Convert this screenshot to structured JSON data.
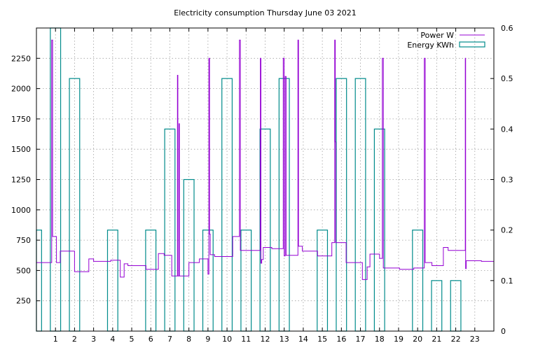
{
  "chart_data": {
    "type": "line",
    "title": "Electricity consumption Thursday June 03 2021",
    "xlabel": "",
    "ylabel": "",
    "xlim": [
      0,
      24
    ],
    "ylim": [
      0,
      2500
    ],
    "y2lim": [
      0,
      0.6
    ],
    "grid": true,
    "legend_position": "top-right",
    "x_ticks": [
      1,
      2,
      3,
      4,
      5,
      6,
      7,
      8,
      9,
      10,
      11,
      12,
      13,
      14,
      15,
      16,
      17,
      18,
      19,
      20,
      21,
      22,
      23
    ],
    "y_ticks": [
      250,
      500,
      750,
      1000,
      1250,
      1500,
      1750,
      2000,
      2250
    ],
    "y2_ticks": [
      0,
      0.1,
      0.2,
      0.3,
      0.4,
      0.5,
      0.6
    ],
    "series": [
      {
        "name": "Power W",
        "color": "#9400d3",
        "style": "steps",
        "axis": "y1",
        "points": [
          [
            0,
            565
          ],
          [
            0.75,
            565
          ],
          [
            0.8,
            2400
          ],
          [
            0.85,
            780
          ],
          [
            1.0,
            780
          ],
          [
            1.05,
            565
          ],
          [
            1.2,
            565
          ],
          [
            1.25,
            660
          ],
          [
            1.95,
            660
          ],
          [
            2.0,
            490
          ],
          [
            2.7,
            490
          ],
          [
            2.75,
            595
          ],
          [
            2.95,
            595
          ],
          [
            3.0,
            575
          ],
          [
            3.85,
            575
          ],
          [
            3.9,
            585
          ],
          [
            4.35,
            585
          ],
          [
            4.4,
            445
          ],
          [
            4.55,
            445
          ],
          [
            4.6,
            555
          ],
          [
            4.75,
            555
          ],
          [
            4.8,
            540
          ],
          [
            5.7,
            540
          ],
          [
            5.75,
            510
          ],
          [
            6.35,
            510
          ],
          [
            6.4,
            640
          ],
          [
            6.65,
            640
          ],
          [
            6.7,
            625
          ],
          [
            7.05,
            625
          ],
          [
            7.1,
            455
          ],
          [
            7.38,
            455
          ],
          [
            7.4,
            2110
          ],
          [
            7.42,
            455
          ],
          [
            7.45,
            455
          ],
          [
            7.48,
            1710
          ],
          [
            7.5,
            455
          ],
          [
            7.95,
            455
          ],
          [
            8.0,
            565
          ],
          [
            8.5,
            565
          ],
          [
            8.55,
            595
          ],
          [
            8.95,
            595
          ],
          [
            9.0,
            470
          ],
          [
            9.05,
            2250
          ],
          [
            9.08,
            800
          ],
          [
            9.12,
            630
          ],
          [
            9.3,
            630
          ],
          [
            9.35,
            615
          ],
          [
            10.25,
            615
          ],
          [
            10.3,
            780
          ],
          [
            10.6,
            780
          ],
          [
            10.65,
            2400
          ],
          [
            10.7,
            665
          ],
          [
            11.7,
            665
          ],
          [
            11.75,
            2250
          ],
          [
            11.78,
            560
          ],
          [
            11.82,
            590
          ],
          [
            11.9,
            690
          ],
          [
            12.3,
            690
          ],
          [
            12.35,
            680
          ],
          [
            12.9,
            680
          ],
          [
            12.95,
            2250
          ],
          [
            13.0,
            620
          ],
          [
            13.05,
            2100
          ],
          [
            13.1,
            625
          ],
          [
            13.7,
            625
          ],
          [
            13.72,
            2400
          ],
          [
            13.75,
            700
          ],
          [
            13.9,
            700
          ],
          [
            13.95,
            660
          ],
          [
            14.7,
            660
          ],
          [
            14.75,
            620
          ],
          [
            15.45,
            620
          ],
          [
            15.5,
            730
          ],
          [
            15.6,
            730
          ],
          [
            15.65,
            2400
          ],
          [
            15.68,
            1560
          ],
          [
            15.7,
            730
          ],
          [
            16.2,
            730
          ],
          [
            16.25,
            565
          ],
          [
            17.05,
            565
          ],
          [
            17.1,
            425
          ],
          [
            17.3,
            425
          ],
          [
            17.35,
            530
          ],
          [
            17.45,
            530
          ],
          [
            17.5,
            635
          ],
          [
            17.95,
            635
          ],
          [
            18.0,
            600
          ],
          [
            18.1,
            600
          ],
          [
            18.15,
            2250
          ],
          [
            18.2,
            520
          ],
          [
            19.0,
            520
          ],
          [
            19.05,
            510
          ],
          [
            19.75,
            510
          ],
          [
            19.8,
            520
          ],
          [
            20.3,
            520
          ],
          [
            20.35,
            2250
          ],
          [
            20.4,
            565
          ],
          [
            20.7,
            565
          ],
          [
            20.75,
            540
          ],
          [
            21.3,
            540
          ],
          [
            21.35,
            690
          ],
          [
            21.55,
            690
          ],
          [
            21.6,
            665
          ],
          [
            22.45,
            665
          ],
          [
            22.5,
            2250
          ],
          [
            22.52,
            515
          ],
          [
            22.55,
            580
          ],
          [
            23.3,
            580
          ],
          [
            23.35,
            575
          ],
          [
            24,
            575
          ]
        ]
      },
      {
        "name": "Energy KWh",
        "color": "#008b8b",
        "style": "boxes",
        "axis": "y2",
        "boxes": [
          {
            "x0": 0,
            "x1": 0.27,
            "value": 0.2
          },
          {
            "x0": 0.73,
            "x1": 1.27,
            "value": 0.6
          },
          {
            "x0": 1.73,
            "x1": 2.27,
            "value": 0.5
          },
          {
            "x0": 3.73,
            "x1": 4.27,
            "value": 0.2
          },
          {
            "x0": 5.73,
            "x1": 6.27,
            "value": 0.2
          },
          {
            "x0": 6.73,
            "x1": 7.27,
            "value": 0.4
          },
          {
            "x0": 7.73,
            "x1": 8.27,
            "value": 0.3
          },
          {
            "x0": 8.73,
            "x1": 9.27,
            "value": 0.2
          },
          {
            "x0": 9.73,
            "x1": 10.27,
            "value": 0.5
          },
          {
            "x0": 10.73,
            "x1": 11.27,
            "value": 0.2
          },
          {
            "x0": 11.73,
            "x1": 12.27,
            "value": 0.4
          },
          {
            "x0": 12.73,
            "x1": 13.27,
            "value": 0.5
          },
          {
            "x0": 14.73,
            "x1": 15.27,
            "value": 0.2
          },
          {
            "x0": 15.73,
            "x1": 16.27,
            "value": 0.5
          },
          {
            "x0": 16.73,
            "x1": 17.27,
            "value": 0.5
          },
          {
            "x0": 17.73,
            "x1": 18.27,
            "value": 0.4
          },
          {
            "x0": 19.73,
            "x1": 20.27,
            "value": 0.2
          },
          {
            "x0": 20.73,
            "x1": 21.27,
            "value": 0.1
          },
          {
            "x0": 21.73,
            "x1": 22.27,
            "value": 0.1
          }
        ]
      }
    ]
  }
}
